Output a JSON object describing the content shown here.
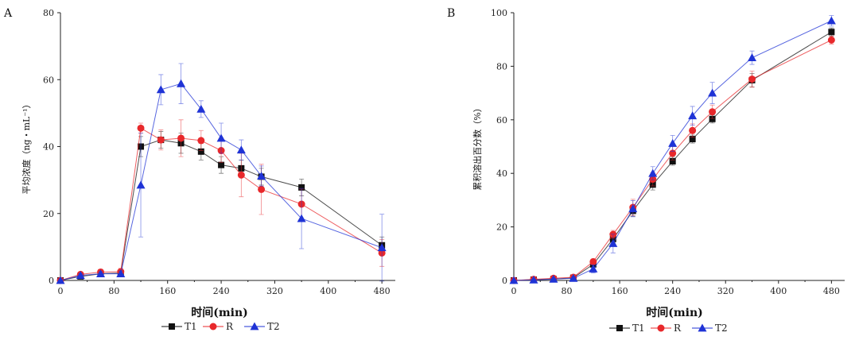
{
  "chart_data": [
    {
      "panel_label": "A",
      "type": "line",
      "xlabel": "时间(min)",
      "ylabel": "平均浓度（ng・mL⁻¹）",
      "xlim": [
        0,
        500
      ],
      "ylim": [
        0,
        80
      ],
      "xticks": [
        0,
        80,
        160,
        240,
        320,
        400,
        480
      ],
      "yticks": [
        0,
        20,
        40,
        60,
        80
      ],
      "grid": false,
      "legend_position": "bottom-center",
      "error_bars": true,
      "series": [
        {
          "name": "T1",
          "color": "#111111",
          "marker": "square",
          "x": [
            0,
            30,
            60,
            90,
            120,
            150,
            180,
            210,
            240,
            270,
            300,
            360,
            480
          ],
          "y": [
            0,
            1.2,
            2.0,
            2.2,
            40.0,
            42.0,
            41.0,
            38.5,
            34.5,
            33.5,
            31.0,
            27.8,
            10.5
          ],
          "err": [
            0,
            0.5,
            0.6,
            0.8,
            3,
            2.5,
            3,
            2.5,
            2.5,
            2.5,
            2.5,
            2.5,
            2.5
          ]
        },
        {
          "name": "R",
          "color": "#e8282b",
          "marker": "circle",
          "x": [
            0,
            30,
            60,
            90,
            120,
            150,
            180,
            210,
            240,
            270,
            300,
            360,
            480
          ],
          "y": [
            0,
            1.8,
            2.5,
            2.6,
            45.5,
            42.0,
            42.5,
            41.8,
            38.8,
            31.5,
            27.2,
            22.8,
            8.2
          ],
          "err": [
            0,
            0.6,
            0.8,
            1.0,
            1.5,
            3,
            5.5,
            3,
            3.5,
            6.5,
            7.5,
            4.5,
            4
          ]
        },
        {
          "name": "T2",
          "color": "#1f33d6",
          "marker": "triangle",
          "x": [
            0,
            30,
            60,
            90,
            120,
            150,
            180,
            210,
            240,
            270,
            300,
            360,
            480
          ],
          "y": [
            0,
            1.5,
            2.0,
            2.0,
            28.5,
            57.0,
            58.8,
            51.2,
            42.5,
            39.0,
            31.2,
            18.5,
            9.8
          ],
          "err": [
            0,
            0.5,
            0.6,
            0.8,
            15.5,
            4.5,
            6,
            2.5,
            4.5,
            3,
            3,
            9,
            10
          ]
        }
      ]
    },
    {
      "panel_label": "B",
      "type": "line",
      "xlabel": "时间(min)",
      "ylabel": "累积溶出百分数（%）",
      "xlim": [
        0,
        500
      ],
      "ylim": [
        0,
        100
      ],
      "xticks": [
        0,
        80,
        160,
        240,
        320,
        400,
        480
      ],
      "yticks": [
        0,
        20,
        40,
        60,
        80,
        100
      ],
      "grid": false,
      "legend_position": "bottom-center",
      "error_bars": true,
      "series": [
        {
          "name": "T1",
          "color": "#111111",
          "marker": "square",
          "x": [
            0,
            30,
            60,
            90,
            120,
            150,
            180,
            210,
            240,
            270,
            300,
            360,
            480
          ],
          "y": [
            0,
            0.3,
            0.5,
            1.0,
            6.0,
            15.5,
            26.0,
            35.8,
            44.5,
            52.8,
            60.3,
            74.8,
            92.8
          ],
          "err": [
            0,
            0.3,
            0.3,
            0.5,
            1.0,
            1.5,
            2,
            2,
            1.5,
            1.5,
            1.5,
            2.5,
            1.5
          ]
        },
        {
          "name": "R",
          "color": "#e8282b",
          "marker": "circle",
          "x": [
            0,
            30,
            60,
            90,
            120,
            150,
            180,
            210,
            240,
            270,
            300,
            360,
            480
          ],
          "y": [
            0,
            0.4,
            0.8,
            1.2,
            7.0,
            17.2,
            27.3,
            37.8,
            47.5,
            56.0,
            63.0,
            75.2,
            89.8
          ],
          "err": [
            0,
            0.3,
            0.3,
            0.5,
            1.0,
            1.5,
            3,
            2.5,
            2.5,
            2.5,
            2.5,
            3,
            1.5
          ]
        },
        {
          "name": "T2",
          "color": "#1f33d6",
          "marker": "triangle",
          "x": [
            0,
            30,
            60,
            90,
            120,
            150,
            180,
            210,
            240,
            270,
            300,
            360,
            480
          ],
          "y": [
            0,
            0.2,
            0.5,
            0.8,
            4.3,
            13.8,
            26.8,
            40.0,
            51.2,
            61.5,
            70.0,
            83.2,
            97.0
          ],
          "err": [
            0,
            0.3,
            0.3,
            0.5,
            1.5,
            3.5,
            3,
            2.5,
            3,
            3.5,
            4,
            2.5,
            2
          ]
        }
      ]
    }
  ]
}
